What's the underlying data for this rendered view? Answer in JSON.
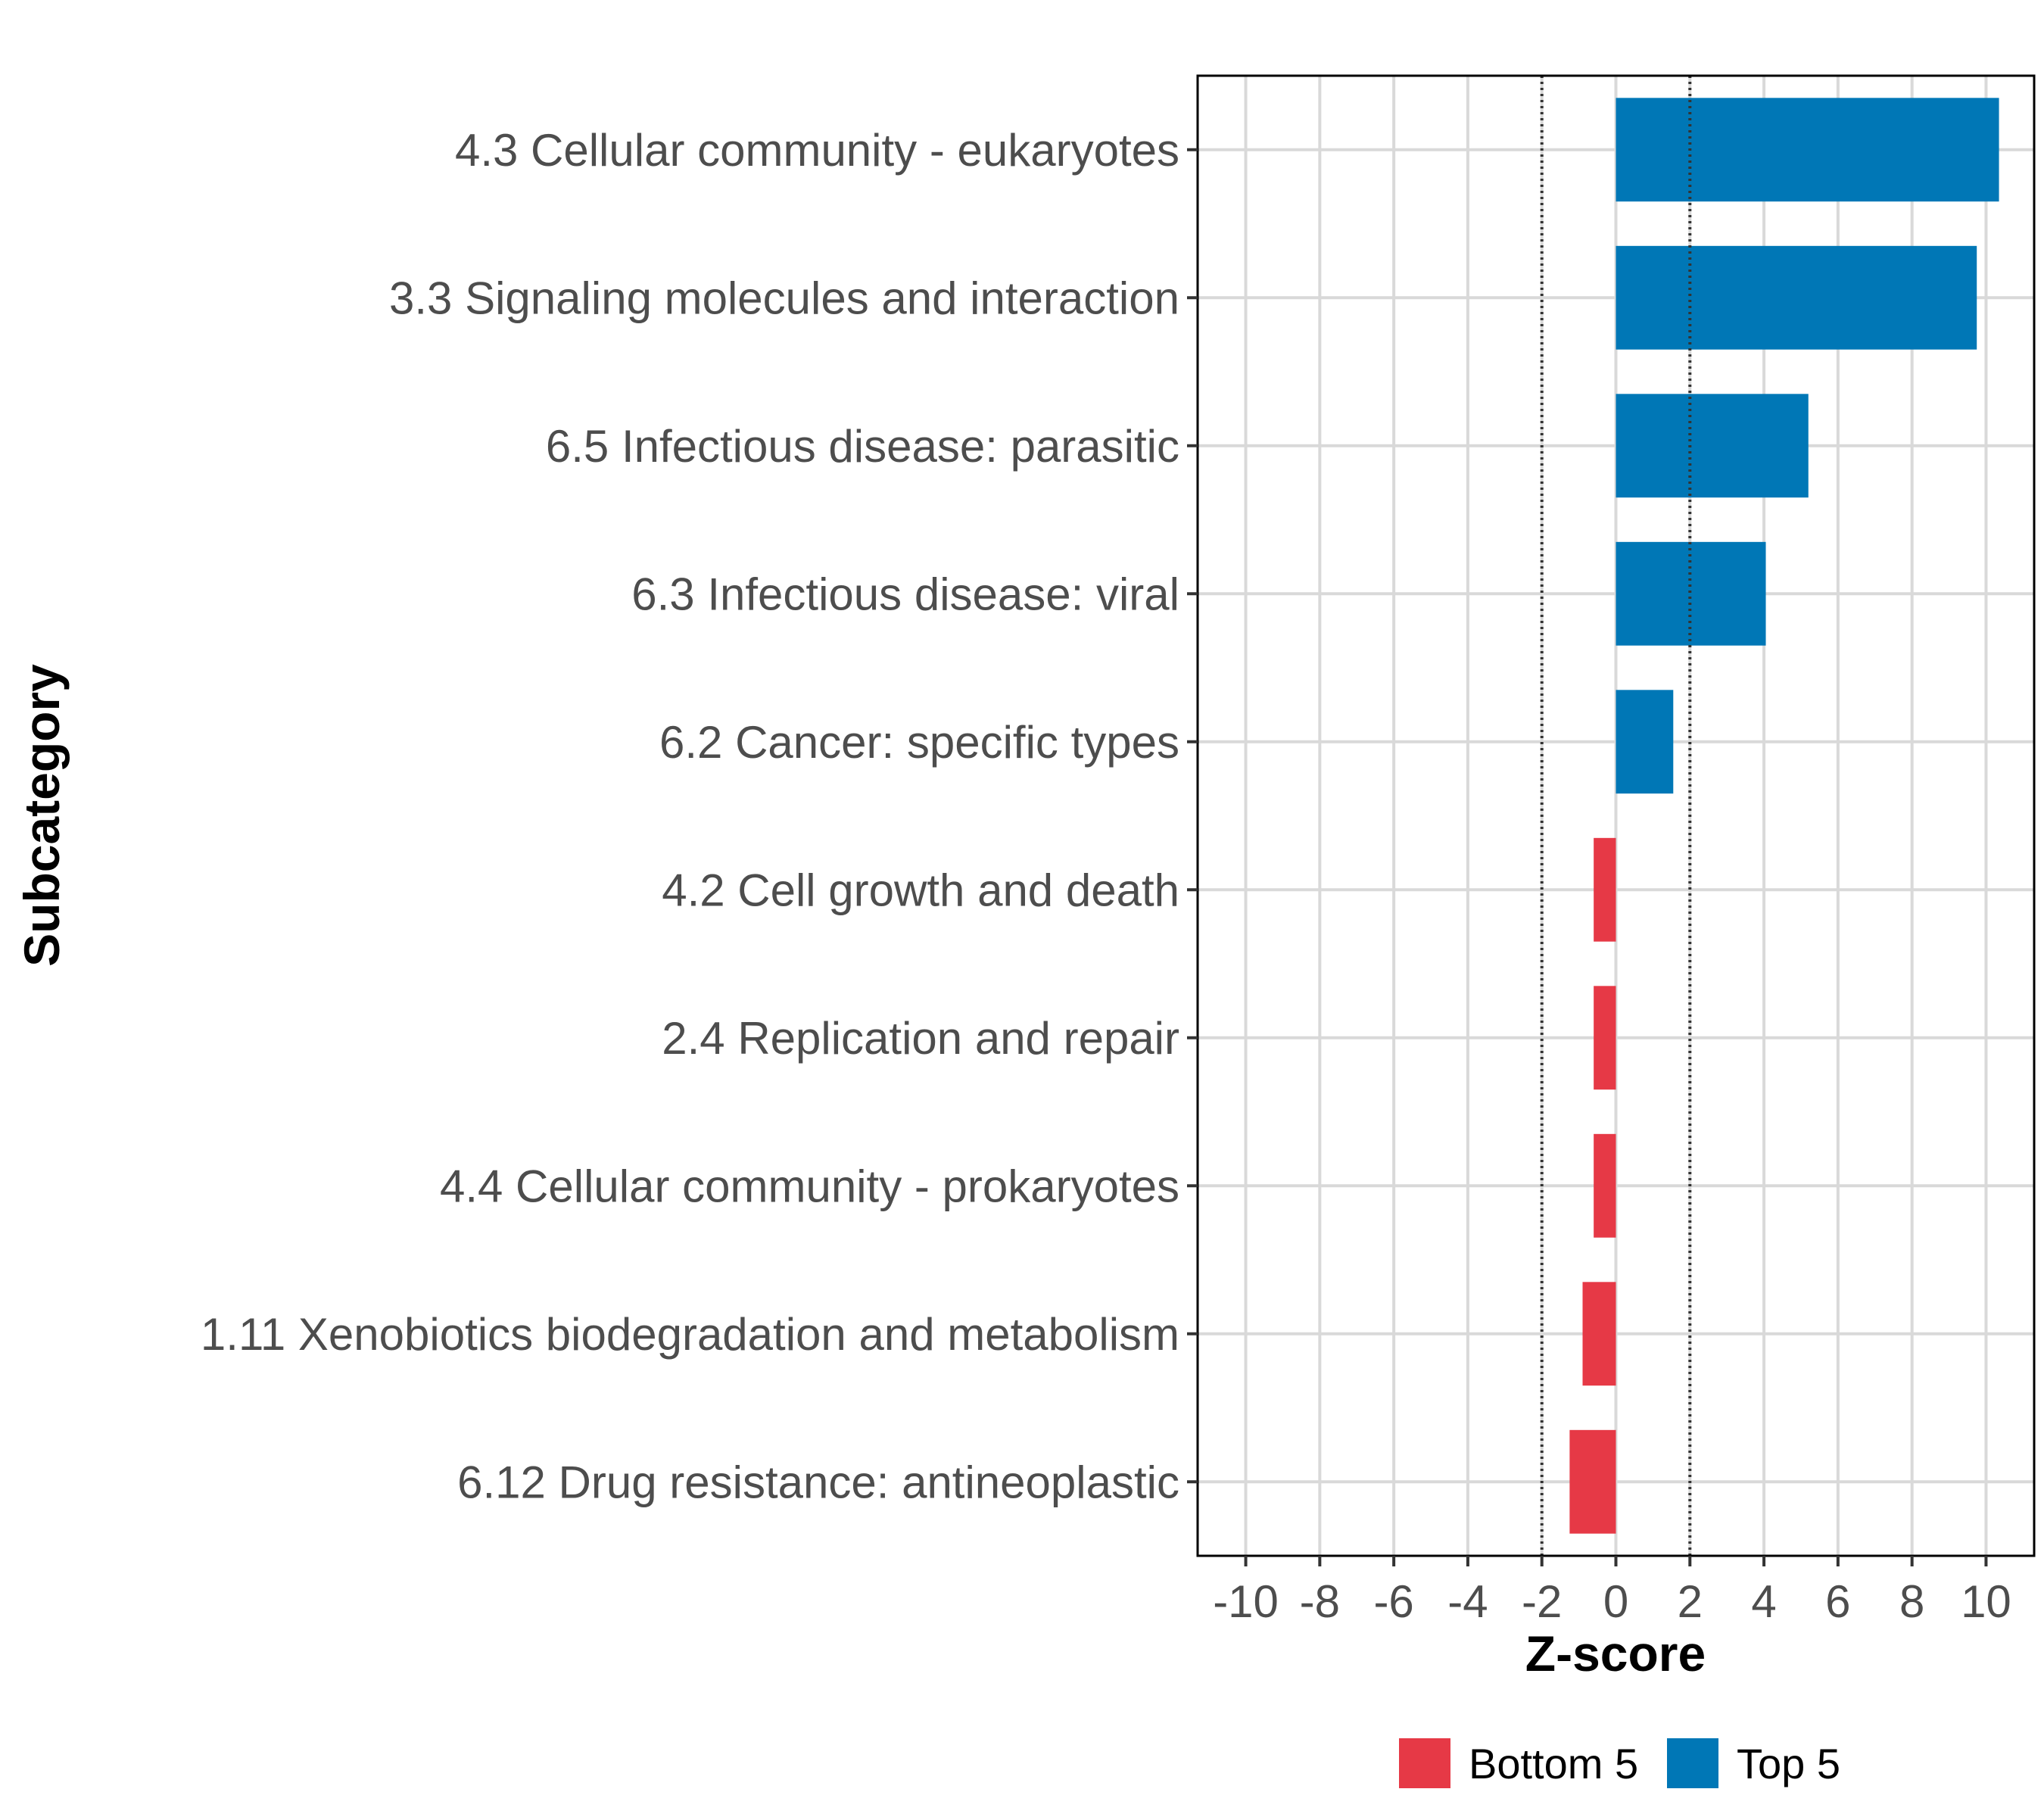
{
  "chart_data": {
    "type": "bar",
    "orientation": "horizontal",
    "xlabel": "Z-score",
    "ylabel": "Subcategory",
    "xlim": [
      -11.3,
      11.3
    ],
    "xticks": [
      -10,
      -8,
      -6,
      -4,
      -2,
      0,
      2,
      4,
      6,
      8,
      10
    ],
    "xtick_labels": [
      "-10",
      "-8",
      "-6",
      "-4",
      "-2",
      "0",
      "2",
      "4",
      "6",
      "8",
      "10"
    ],
    "reference_lines": [
      -2,
      2
    ],
    "grid": true,
    "legend_position": "bottom",
    "groups": [
      {
        "name": "Bottom 5",
        "color": "#e63946"
      },
      {
        "name": "Top 5",
        "color": "#0077b6"
      }
    ],
    "categories": [
      "4.3 Cellular community - eukaryotes",
      "3.3 Signaling molecules and interaction",
      "6.5 Infectious disease: parasitic",
      "6.3 Infectious disease: viral",
      "6.2 Cancer: specific types",
      "4.2 Cell growth and death",
      "2.4 Replication and repair",
      "4.4 Cellular community - prokaryotes",
      "1.11 Xenobiotics biodegradation and metabolism",
      "6.12 Drug resistance: antineoplastic"
    ],
    "values": [
      10.35,
      9.75,
      5.2,
      4.05,
      1.55,
      -0.6,
      -0.6,
      -0.6,
      -0.9,
      -1.25
    ],
    "bar_groups": [
      "Top 5",
      "Top 5",
      "Top 5",
      "Top 5",
      "Top 5",
      "Bottom 5",
      "Bottom 5",
      "Bottom 5",
      "Bottom 5",
      "Bottom 5"
    ]
  }
}
